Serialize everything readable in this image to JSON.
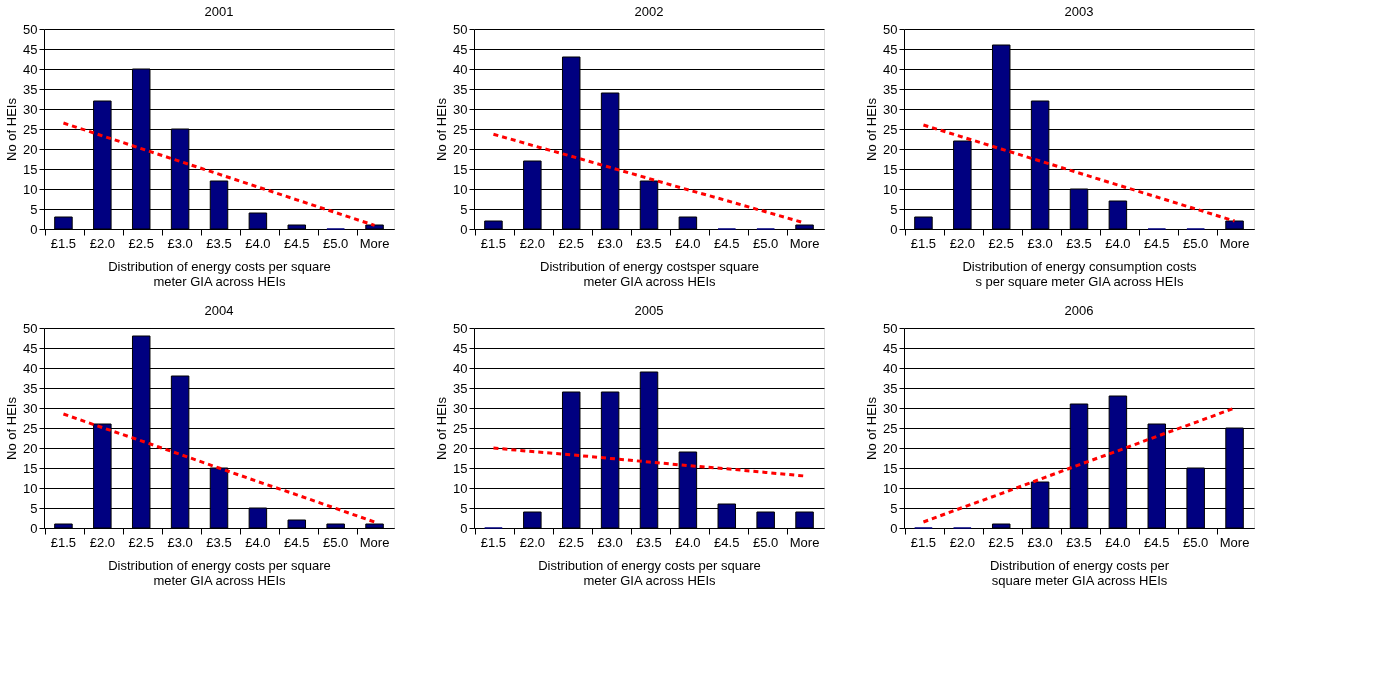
{
  "chart_data": [
    {
      "type": "bar",
      "title": "2001",
      "xlabel": "Distribution of energy costs per square\nmeter GIA across HEIs",
      "ylabel": "No of HEIs",
      "categories": [
        "£1.5",
        "£2.0",
        "£2.5",
        "£3.0",
        "£3.5",
        "£4.0",
        "£4.5",
        "£5.0",
        "More"
      ],
      "ylim": [
        0,
        50
      ],
      "yticks": [
        0,
        5,
        10,
        15,
        20,
        25,
        30,
        35,
        40,
        45,
        50
      ],
      "grid": "y",
      "series": [
        {
          "type": "bar",
          "color": "#000080",
          "values": [
            3,
            32,
            40,
            25,
            12,
            4,
            1,
            0,
            1
          ]
        },
        {
          "type": "line",
          "color": "#ff0000",
          "line_style": "dashed",
          "values": [
            26.5,
            23.3,
            20.1,
            16.9,
            13.7,
            10.5,
            7.3,
            4.1,
            0.9
          ]
        }
      ]
    },
    {
      "type": "bar",
      "title": "2002",
      "xlabel": "Distribution of energy costsper square\nmeter GIA across HEIs",
      "ylabel": "No of HEIs",
      "categories": [
        "£1.5",
        "£2.0",
        "£2.5",
        "£3.0",
        "£3.5",
        "£4.0",
        "£4.5",
        "£5.0",
        "More"
      ],
      "ylim": [
        0,
        50
      ],
      "yticks": [
        0,
        5,
        10,
        15,
        20,
        25,
        30,
        35,
        40,
        45,
        50
      ],
      "grid": "y",
      "series": [
        {
          "type": "bar",
          "color": "#000080",
          "values": [
            2,
            17,
            43,
            34,
            12,
            3,
            0,
            0,
            1
          ]
        },
        {
          "type": "line",
          "color": "#ff0000",
          "line_style": "dashed",
          "values": [
            23.7,
            20.9,
            18.2,
            15.4,
            12.6,
            9.8,
            7.1,
            4.3,
            1.5
          ]
        }
      ]
    },
    {
      "type": "bar",
      "title": "2003",
      "xlabel": "Distribution of energy consumption costs\ns        per square meter GIA across HEIs",
      "ylabel": "No of HEIs",
      "categories": [
        "£1.5",
        "£2.0",
        "£2.5",
        "£3.0",
        "£3.5",
        "£4.0",
        "£4.5",
        "£5.0",
        "More"
      ],
      "ylim": [
        0,
        50
      ],
      "yticks": [
        0,
        5,
        10,
        15,
        20,
        25,
        30,
        35,
        40,
        45,
        50
      ],
      "grid": "y",
      "series": [
        {
          "type": "bar",
          "color": "#000080",
          "values": [
            3,
            22,
            46,
            32,
            10,
            7,
            0,
            0,
            2
          ]
        },
        {
          "type": "line",
          "color": "#ff0000",
          "line_style": "dashed",
          "values": [
            26,
            23,
            20,
            17,
            14,
            11,
            8,
            5,
            2
          ]
        }
      ]
    },
    {
      "type": "bar",
      "title": "2004",
      "xlabel": "Distribution of energy costs per square\nmeter GIA across HEIs",
      "ylabel": "No of HEIs",
      "categories": [
        "£1.5",
        "£2.0",
        "£2.5",
        "£3.0",
        "£3.5",
        "£4.0",
        "£4.5",
        "£5.0",
        "More"
      ],
      "ylim": [
        0,
        50
      ],
      "yticks": [
        0,
        5,
        10,
        15,
        20,
        25,
        30,
        35,
        40,
        45,
        50
      ],
      "grid": "y",
      "series": [
        {
          "type": "bar",
          "color": "#000080",
          "values": [
            1,
            26,
            48,
            38,
            15,
            5,
            2,
            1,
            1
          ]
        },
        {
          "type": "line",
          "color": "#ff0000",
          "line_style": "dashed",
          "values": [
            28.5,
            25.1,
            21.8,
            18.4,
            15,
            11.6,
            8.3,
            4.9,
            1.5
          ]
        }
      ]
    },
    {
      "type": "bar",
      "title": "2005",
      "xlabel": "Distribution of energy costs per square\nmeter GIA across HEIs",
      "ylabel": "No of HEIs",
      "categories": [
        "£1.5",
        "£2.0",
        "£2.5",
        "£3.0",
        "£3.5",
        "£4.0",
        "£4.5",
        "£5.0",
        "More"
      ],
      "ylim": [
        0,
        50
      ],
      "yticks": [
        0,
        5,
        10,
        15,
        20,
        25,
        30,
        35,
        40,
        45,
        50
      ],
      "grid": "y",
      "series": [
        {
          "type": "bar",
          "color": "#000080",
          "values": [
            0,
            4,
            34,
            34,
            39,
            19,
            6,
            4,
            4
          ]
        },
        {
          "type": "line",
          "color": "#ff0000",
          "line_style": "dashed",
          "values": [
            20,
            19.1,
            18.3,
            17.4,
            16.5,
            15.6,
            14.8,
            13.9,
            13
          ]
        }
      ]
    },
    {
      "type": "bar",
      "title": "2006",
      "xlabel": "Distribution of energy costs per\nsquare meter GIA across HEIs",
      "ylabel": "No of HEIs",
      "categories": [
        "£1.5",
        "£2.0",
        "£2.5",
        "£3.0",
        "£3.5",
        "£4.0",
        "£4.5",
        "£5.0",
        "More"
      ],
      "ylim": [
        0,
        50
      ],
      "yticks": [
        0,
        5,
        10,
        15,
        20,
        25,
        30,
        35,
        40,
        45,
        50
      ],
      "grid": "y",
      "series": [
        {
          "type": "bar",
          "color": "#000080",
          "values": [
            0,
            0,
            1,
            11.5,
            31,
            33,
            26,
            15,
            25
          ]
        },
        {
          "type": "line",
          "color": "#ff0000",
          "line_style": "dashed",
          "values": [
            1.5,
            5.1,
            8.6,
            12.2,
            15.8,
            19.3,
            22.9,
            26.4,
            30
          ]
        }
      ]
    }
  ]
}
